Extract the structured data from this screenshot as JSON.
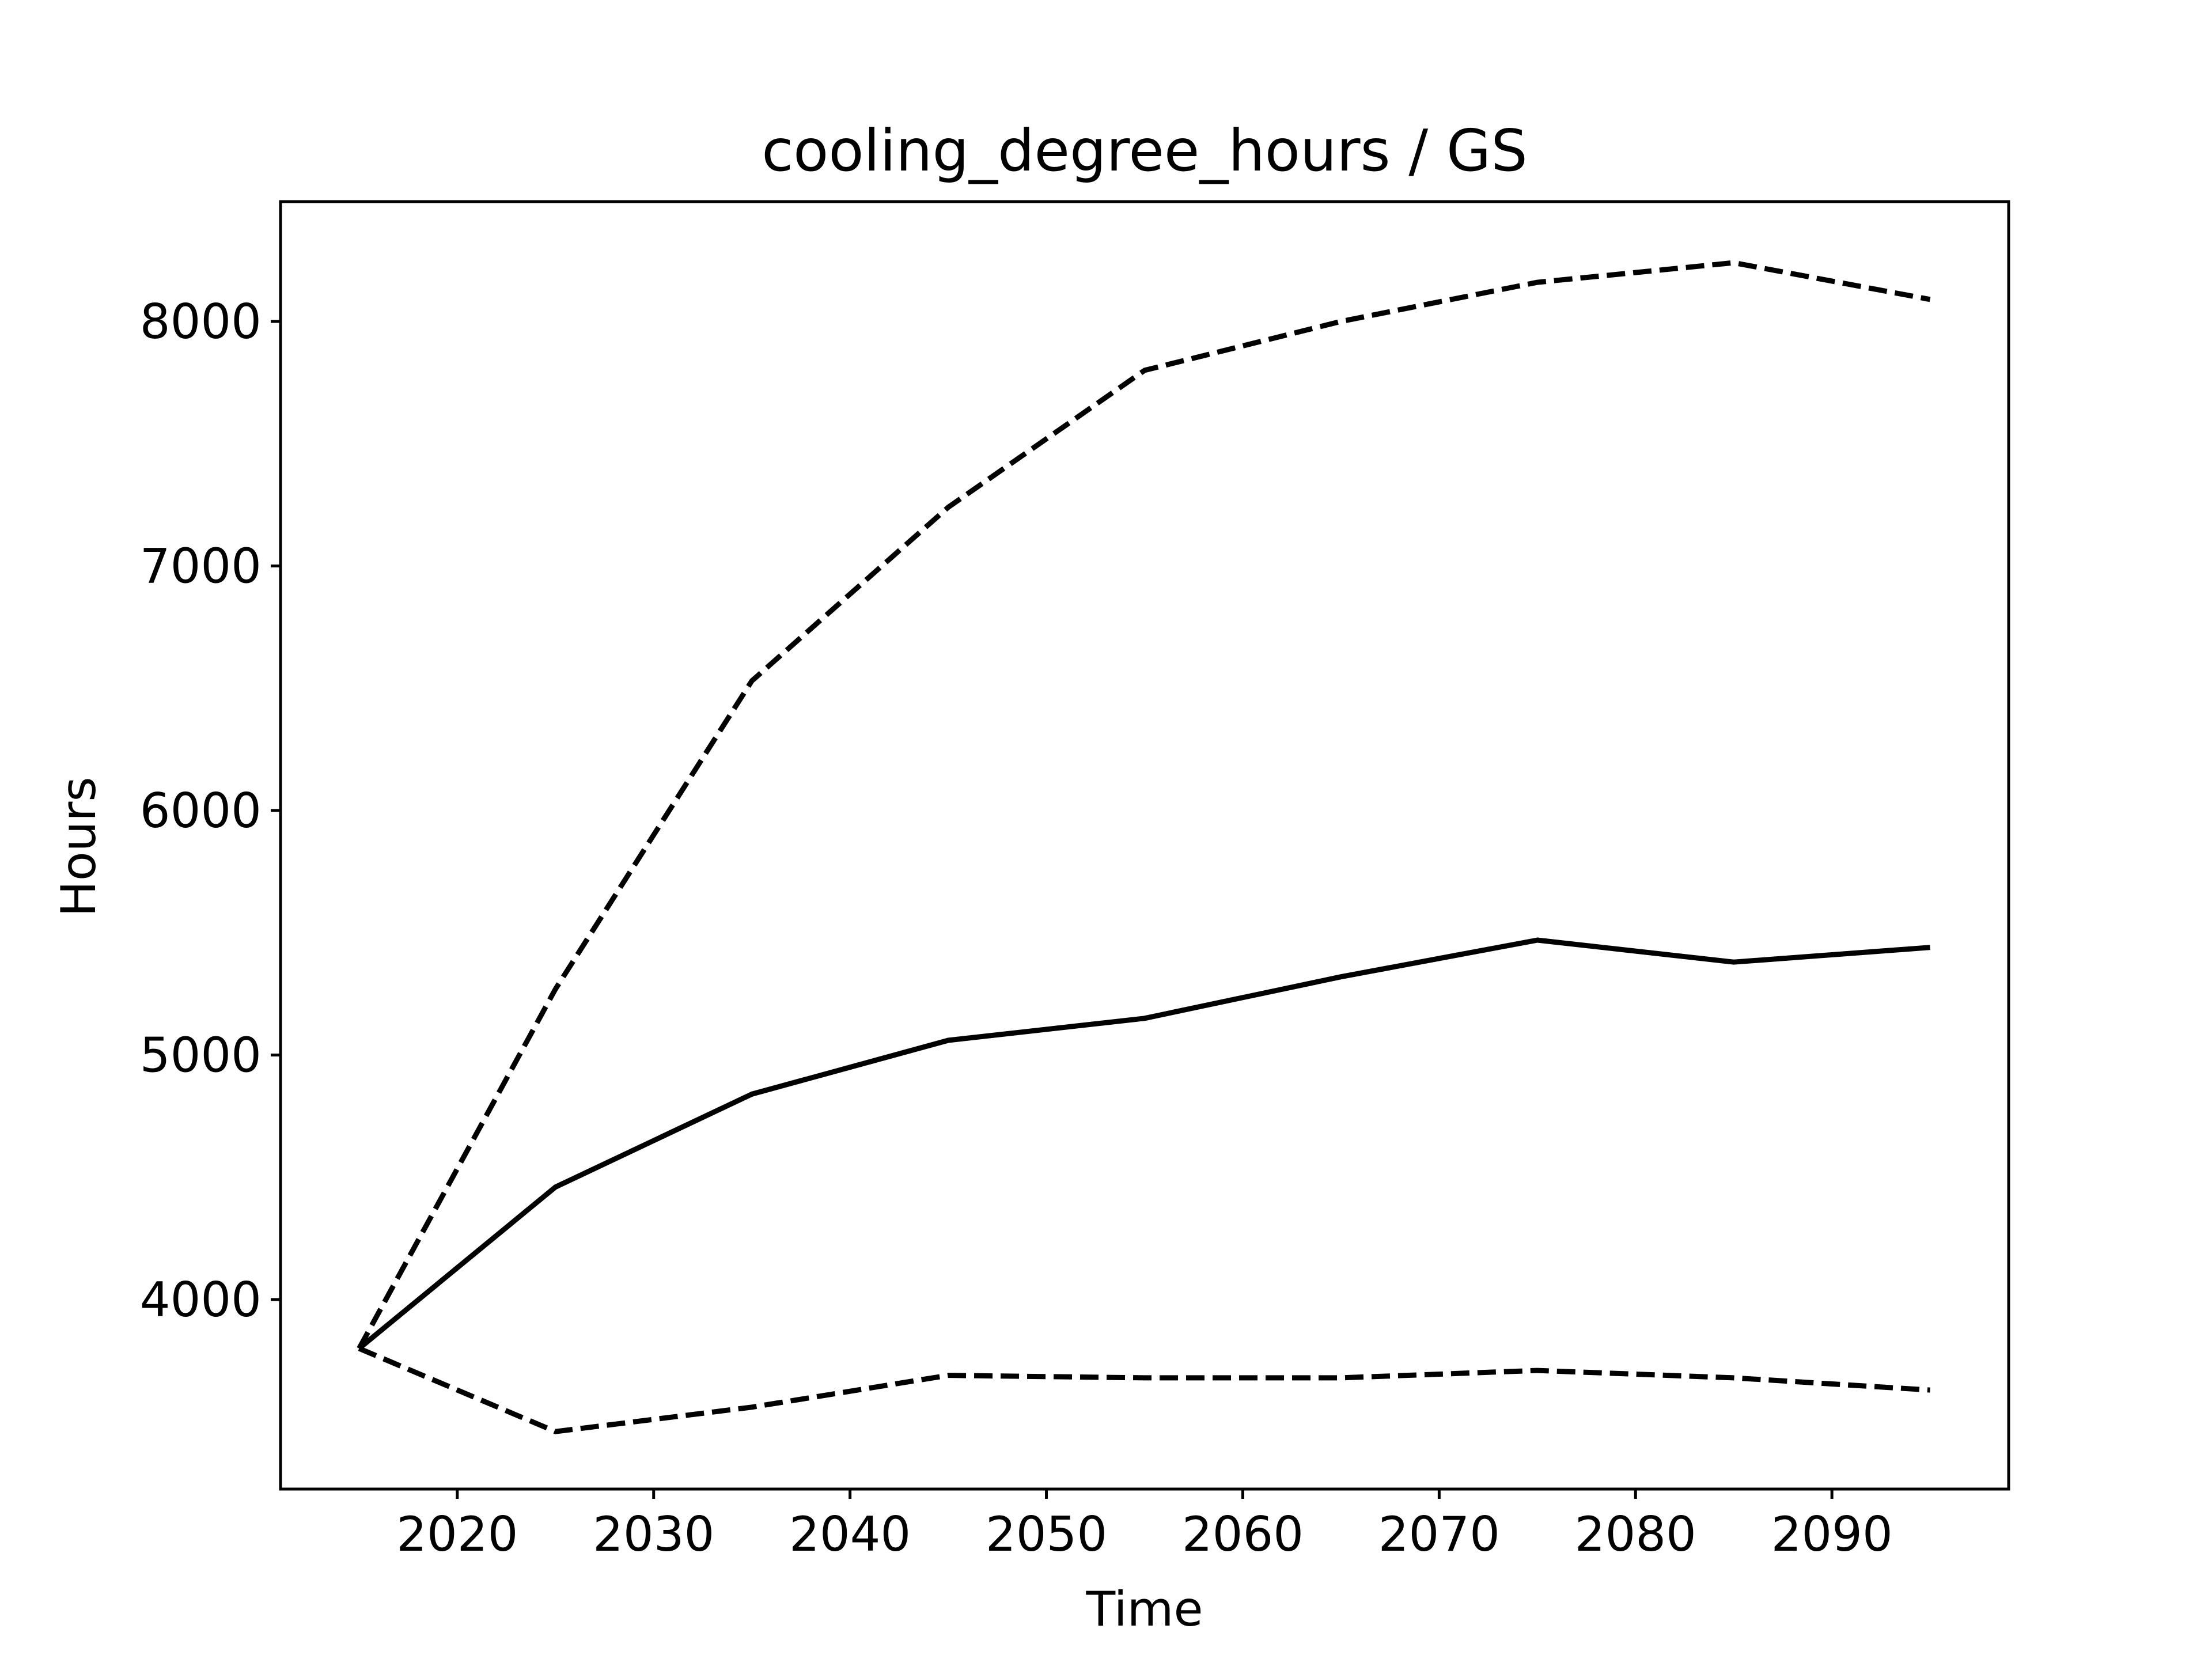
{
  "chart_data": {
    "type": "line",
    "title": "cooling_degree_hours / GS",
    "xlabel": "Time",
    "ylabel": "Hours",
    "xlim": [
      2011,
      2099
    ],
    "ylim": [
      3225,
      8490
    ],
    "xticks": [
      2020,
      2030,
      2040,
      2050,
      2060,
      2070,
      2080,
      2090
    ],
    "yticks": [
      4000,
      5000,
      6000,
      7000,
      8000
    ],
    "grid": false,
    "legend": "none",
    "x": [
      2015,
      2025,
      2035,
      2045,
      2055,
      2065,
      2075,
      2085,
      2095
    ],
    "series": [
      {
        "style": "dashed",
        "color": "#000000",
        "values": [
          3800,
          5270,
          6530,
          7240,
          7800,
          8000,
          8160,
          8240,
          8090
        ]
      },
      {
        "style": "solid",
        "color": "#000000",
        "values": [
          3800,
          4460,
          4840,
          5060,
          5150,
          5320,
          5470,
          5380,
          5440
        ]
      },
      {
        "style": "dashed",
        "color": "#000000",
        "values": [
          3800,
          3460,
          3560,
          3690,
          3680,
          3680,
          3710,
          3680,
          3630
        ]
      }
    ]
  }
}
